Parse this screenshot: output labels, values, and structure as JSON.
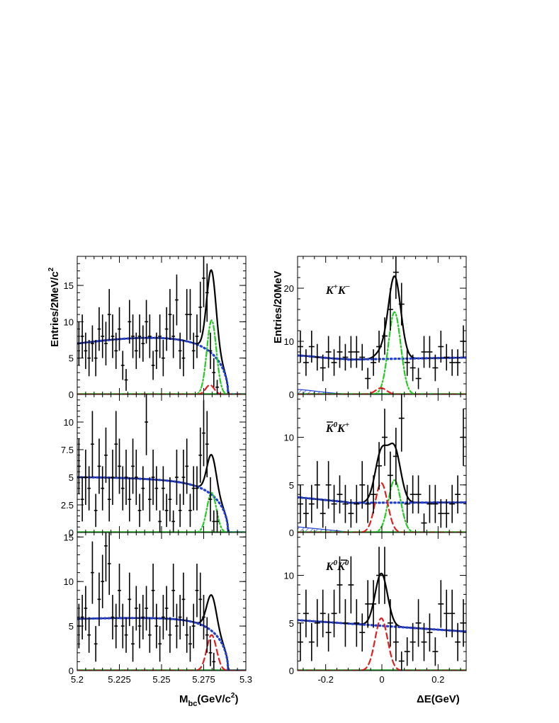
{
  "figure": {
    "left_ylabel": "Entries/2MeV/c",
    "left_ylabel_sup": "2",
    "right_ylabel": "Entries/20MeV",
    "left_xlabel_main": "M",
    "left_xlabel_sub": "bc",
    "left_xlabel_rest": "(GeV/c",
    "left_xlabel_sup": "2",
    "left_xlabel_close": ")",
    "right_xlabel": "ΔE(GeV)",
    "left_xticks": [
      "5.2",
      "5.225",
      "5.25",
      "5.275",
      "5.3"
    ],
    "right_xticks": [
      "-0.2",
      "0",
      "0.2"
    ]
  },
  "chart_data": [
    {
      "type": "scatter",
      "panel": "Mbc K+K-",
      "xlim": [
        5.2,
        5.3
      ],
      "ylim": [
        0,
        19
      ],
      "yticks": [
        "0",
        "5",
        "10",
        "15"
      ],
      "xerr": 0.001,
      "points": [
        [
          5.201,
          7,
          3
        ],
        [
          5.203,
          8,
          3
        ],
        [
          5.205,
          6,
          2.5
        ],
        [
          5.207,
          5,
          2.5
        ],
        [
          5.209,
          7,
          2.5
        ],
        [
          5.211,
          5,
          2.5
        ],
        [
          5.213,
          9,
          3
        ],
        [
          5.215,
          8,
          3
        ],
        [
          5.217,
          7,
          3
        ],
        [
          5.219,
          11,
          3.5
        ],
        [
          5.221,
          8,
          3
        ],
        [
          5.223,
          6,
          2.5
        ],
        [
          5.225,
          9,
          3
        ],
        [
          5.227,
          4,
          2
        ],
        [
          5.229,
          2,
          1.5
        ],
        [
          5.231,
          10,
          3
        ],
        [
          5.233,
          8,
          3
        ],
        [
          5.235,
          6,
          2.5
        ],
        [
          5.237,
          8,
          3
        ],
        [
          5.239,
          7,
          2.5
        ],
        [
          5.241,
          10,
          3
        ],
        [
          5.243,
          8,
          3
        ],
        [
          5.245,
          4,
          2
        ],
        [
          5.247,
          6,
          2.5
        ],
        [
          5.249,
          8,
          3
        ],
        [
          5.251,
          5,
          2.5
        ],
        [
          5.253,
          9,
          3
        ],
        [
          5.255,
          11,
          3.5
        ],
        [
          5.257,
          8,
          3
        ],
        [
          5.259,
          13,
          3.5
        ],
        [
          5.261,
          6,
          2.5
        ],
        [
          5.263,
          5,
          2.5
        ],
        [
          5.265,
          11,
          3.5
        ],
        [
          5.267,
          11,
          3.5
        ],
        [
          5.269,
          6,
          2.5
        ],
        [
          5.271,
          8,
          3
        ],
        [
          5.273,
          12,
          3.5
        ],
        [
          5.275,
          16,
          4
        ],
        [
          5.277,
          14,
          4
        ],
        [
          5.279,
          6,
          2.5
        ],
        [
          5.281,
          3,
          2
        ],
        [
          5.283,
          1,
          1
        ]
      ],
      "curves": [
        {
          "name": "total",
          "color": "#000000",
          "style": "solid"
        },
        {
          "name": "background",
          "color": "#1f3fd6",
          "style": "dotted"
        },
        {
          "name": "signal",
          "color": "#22cc22",
          "style": "dashdot"
        },
        {
          "name": "peaking",
          "color": "#e02020",
          "style": "dashed"
        }
      ]
    },
    {
      "type": "scatter",
      "panel": "Mbc K0bar K+",
      "xlim": [
        5.2,
        5.3
      ],
      "ylim": [
        0,
        12.5
      ],
      "yticks": [
        "0",
        "2.5",
        "5",
        "7.5",
        "10"
      ],
      "xerr": 0.001,
      "points": [
        [
          5.201,
          6,
          2.5
        ],
        [
          5.203,
          3,
          2
        ],
        [
          5.205,
          5,
          2.5
        ],
        [
          5.207,
          4,
          2
        ],
        [
          5.209,
          8,
          3
        ],
        [
          5.211,
          2,
          1.5
        ],
        [
          5.213,
          6,
          2.5
        ],
        [
          5.215,
          4,
          2
        ],
        [
          5.217,
          7,
          2.5
        ],
        [
          5.219,
          3,
          2
        ],
        [
          5.221,
          5,
          2.5
        ],
        [
          5.223,
          8,
          3
        ],
        [
          5.225,
          6,
          2.5
        ],
        [
          5.227,
          4,
          2
        ],
        [
          5.229,
          5,
          2.5
        ],
        [
          5.231,
          3,
          2
        ],
        [
          5.233,
          6,
          2.5
        ],
        [
          5.235,
          5,
          2.5
        ],
        [
          5.237,
          2,
          1.5
        ],
        [
          5.239,
          4,
          2
        ],
        [
          5.241,
          10,
          3
        ],
        [
          5.243,
          3,
          2
        ],
        [
          5.245,
          5,
          2.5
        ],
        [
          5.247,
          4,
          2
        ],
        [
          5.249,
          1,
          1
        ],
        [
          5.251,
          4,
          2
        ],
        [
          5.253,
          2,
          1.5
        ],
        [
          5.255,
          3,
          2
        ],
        [
          5.257,
          1,
          1
        ],
        [
          5.259,
          5,
          2.5
        ],
        [
          5.261,
          2,
          1.5
        ],
        [
          5.263,
          5,
          2.5
        ],
        [
          5.265,
          6,
          2.5
        ],
        [
          5.267,
          2,
          1.5
        ],
        [
          5.269,
          4,
          2
        ],
        [
          5.271,
          4,
          2
        ],
        [
          5.273,
          7,
          2.5
        ],
        [
          5.275,
          9,
          3
        ],
        [
          5.277,
          8,
          3
        ],
        [
          5.279,
          3,
          2
        ],
        [
          5.281,
          1,
          1
        ],
        [
          5.283,
          1,
          1
        ]
      ],
      "curves": [
        {
          "name": "total",
          "color": "#000000",
          "style": "solid"
        },
        {
          "name": "background",
          "color": "#1f3fd6",
          "style": "dotted"
        },
        {
          "name": "signal",
          "color": "#22cc22",
          "style": "dashdot"
        }
      ]
    },
    {
      "type": "scatter",
      "panel": "Mbc K0 K0bar",
      "xlim": [
        5.2,
        5.3
      ],
      "ylim": [
        0,
        15.5
      ],
      "yticks": [
        "0",
        "5",
        "10",
        "15"
      ],
      "xerr": 0.001,
      "points": [
        [
          5.201,
          5,
          2.5
        ],
        [
          5.203,
          6,
          2.5
        ],
        [
          5.205,
          7,
          2.5
        ],
        [
          5.207,
          4,
          2
        ],
        [
          5.209,
          11,
          3.5
        ],
        [
          5.211,
          3,
          2
        ],
        [
          5.213,
          8,
          3
        ],
        [
          5.215,
          10,
          3
        ],
        [
          5.217,
          14,
          4
        ],
        [
          5.219,
          12,
          3.5
        ],
        [
          5.221,
          6,
          2.5
        ],
        [
          5.223,
          5,
          2.5
        ],
        [
          5.225,
          9,
          3
        ],
        [
          5.227,
          5,
          2.5
        ],
        [
          5.229,
          4,
          2
        ],
        [
          5.231,
          8,
          3
        ],
        [
          5.233,
          3,
          2
        ],
        [
          5.235,
          7,
          2.5
        ],
        [
          5.237,
          5,
          2.5
        ],
        [
          5.239,
          6,
          2.5
        ],
        [
          5.241,
          7,
          2.5
        ],
        [
          5.243,
          4,
          2
        ],
        [
          5.245,
          9,
          3
        ],
        [
          5.247,
          5,
          2.5
        ],
        [
          5.249,
          3,
          2
        ],
        [
          5.251,
          6,
          2.5
        ],
        [
          5.253,
          7,
          2.5
        ],
        [
          5.255,
          4,
          2
        ],
        [
          5.257,
          9,
          3
        ],
        [
          5.259,
          5,
          2.5
        ],
        [
          5.261,
          6,
          2.5
        ],
        [
          5.263,
          8,
          3
        ],
        [
          5.265,
          4,
          2
        ],
        [
          5.267,
          3,
          2
        ],
        [
          5.269,
          5,
          2.5
        ],
        [
          5.271,
          9,
          3
        ],
        [
          5.273,
          8,
          3
        ],
        [
          5.275,
          6,
          2.5
        ],
        [
          5.277,
          4,
          2
        ],
        [
          5.279,
          2,
          1.5
        ],
        [
          5.281,
          1,
          1
        ]
      ],
      "curves": [
        {
          "name": "total",
          "color": "#000000",
          "style": "solid"
        },
        {
          "name": "background",
          "color": "#1f3fd6",
          "style": "dotted"
        },
        {
          "name": "peaking",
          "color": "#e02020",
          "style": "dashed"
        }
      ]
    },
    {
      "type": "scatter",
      "panel": "dE K+K-",
      "label": "K+K−",
      "label_main": "K",
      "label_sup1": "+",
      "label_mid": "K",
      "label_sup2": "−",
      "xlim": [
        -0.3,
        0.3
      ],
      "ylim": [
        0,
        26
      ],
      "yticks": [
        "0",
        "10",
        "20"
      ],
      "xerr": 0.01,
      "points": [
        [
          -0.29,
          9,
          3
        ],
        [
          -0.27,
          6,
          2.5
        ],
        [
          -0.25,
          9,
          3
        ],
        [
          -0.23,
          7,
          2.5
        ],
        [
          -0.21,
          5,
          2.5
        ],
        [
          -0.19,
          8,
          3
        ],
        [
          -0.17,
          6,
          2.5
        ],
        [
          -0.15,
          8,
          3
        ],
        [
          -0.13,
          7,
          2.5
        ],
        [
          -0.11,
          8,
          3
        ],
        [
          -0.09,
          8,
          3
        ],
        [
          -0.07,
          7,
          2.5
        ],
        [
          -0.05,
          3,
          2
        ],
        [
          -0.03,
          6,
          2.5
        ],
        [
          -0.01,
          9,
          3
        ],
        [
          0.01,
          11,
          3.5
        ],
        [
          0.03,
          16,
          4
        ],
        [
          0.05,
          23,
          5
        ],
        [
          0.07,
          17,
          4
        ],
        [
          0.09,
          6,
          2.5
        ],
        [
          0.11,
          5,
          2.5
        ],
        [
          0.13,
          3,
          2
        ],
        [
          0.15,
          8,
          3
        ],
        [
          0.17,
          8,
          3
        ],
        [
          0.19,
          5,
          2.5
        ],
        [
          0.21,
          9,
          3
        ],
        [
          0.23,
          7,
          2.5
        ],
        [
          0.25,
          6,
          2.5
        ],
        [
          0.27,
          6,
          2.5
        ],
        [
          0.29,
          10,
          3
        ]
      ],
      "curves": [
        {
          "name": "total",
          "color": "#000000",
          "style": "solid"
        },
        {
          "name": "background",
          "color": "#1f3fd6",
          "style": "dotted"
        },
        {
          "name": "signal",
          "color": "#22cc22",
          "style": "dashdot"
        },
        {
          "name": "peaking",
          "color": "#e02020",
          "style": "dashed"
        },
        {
          "name": "feed-down",
          "color": "#1f3fd6",
          "style": "hatched"
        }
      ]
    },
    {
      "type": "scatter",
      "panel": "dE K0bar K+",
      "label_main": "K",
      "label_sup1": "0",
      "label_mid": "K",
      "label_sup2": "+",
      "xlim": [
        -0.3,
        0.3
      ],
      "ylim": [
        0,
        14.5
      ],
      "yticks": [
        "0",
        "5",
        "10"
      ],
      "xerr": 0.01,
      "points": [
        [
          -0.29,
          3,
          2
        ],
        [
          -0.27,
          2,
          1.5
        ],
        [
          -0.25,
          3,
          2
        ],
        [
          -0.23,
          5,
          2.5
        ],
        [
          -0.21,
          2,
          1.5
        ],
        [
          -0.19,
          5,
          2.5
        ],
        [
          -0.17,
          3,
          2
        ],
        [
          -0.15,
          4,
          2
        ],
        [
          -0.13,
          3,
          2
        ],
        [
          -0.11,
          2,
          1.5
        ],
        [
          -0.09,
          3,
          2
        ],
        [
          -0.07,
          5,
          2.5
        ],
        [
          -0.05,
          3,
          2
        ],
        [
          -0.03,
          4,
          2
        ],
        [
          -0.01,
          7,
          2.5
        ],
        [
          0.01,
          10,
          3
        ],
        [
          0.03,
          6,
          2.5
        ],
        [
          0.05,
          8,
          3
        ],
        [
          0.07,
          12,
          3.5
        ],
        [
          0.09,
          3,
          2
        ],
        [
          0.11,
          4,
          2
        ],
        [
          0.13,
          4,
          2
        ],
        [
          0.15,
          1,
          1
        ],
        [
          0.17,
          3,
          2
        ],
        [
          0.19,
          3,
          2
        ],
        [
          0.21,
          2,
          1.5
        ],
        [
          0.23,
          2,
          1.5
        ],
        [
          0.25,
          3,
          2
        ],
        [
          0.27,
          4,
          2
        ],
        [
          0.29,
          10,
          3
        ]
      ],
      "curves": [
        {
          "name": "total",
          "color": "#000000",
          "style": "solid"
        },
        {
          "name": "background",
          "color": "#1f3fd6",
          "style": "dotted"
        },
        {
          "name": "signal",
          "color": "#22cc22",
          "style": "dashdot"
        },
        {
          "name": "peaking",
          "color": "#e02020",
          "style": "dashed"
        },
        {
          "name": "feed-down",
          "color": "#1f3fd6",
          "style": "hatched"
        }
      ]
    },
    {
      "type": "scatter",
      "panel": "dE K0 K0bar",
      "label_main": "K",
      "label_sup1": "0",
      "label_mid": "K",
      "label_sup2": "0",
      "xlim": [
        -0.3,
        0.3
      ],
      "ylim": [
        0,
        14.5
      ],
      "yticks": [
        "0",
        "5",
        "10"
      ],
      "xerr": 0.01,
      "points": [
        [
          -0.29,
          3,
          2
        ],
        [
          -0.27,
          6,
          2.5
        ],
        [
          -0.25,
          3,
          2
        ],
        [
          -0.23,
          5,
          2.5
        ],
        [
          -0.21,
          6,
          2.5
        ],
        [
          -0.19,
          4,
          2
        ],
        [
          -0.17,
          6,
          2.5
        ],
        [
          -0.15,
          9,
          3
        ],
        [
          -0.13,
          5,
          2.5
        ],
        [
          -0.11,
          9,
          3
        ],
        [
          -0.09,
          5,
          2.5
        ],
        [
          -0.07,
          4,
          2
        ],
        [
          -0.05,
          7,
          2.5
        ],
        [
          -0.03,
          7,
          2.5
        ],
        [
          -0.01,
          10,
          3
        ],
        [
          0.01,
          10,
          3
        ],
        [
          0.03,
          5,
          2.5
        ],
        [
          0.05,
          3,
          2
        ],
        [
          0.07,
          1,
          1
        ],
        [
          0.09,
          2,
          1.5
        ],
        [
          0.11,
          3,
          2
        ],
        [
          0.13,
          5,
          2.5
        ],
        [
          0.15,
          3,
          2
        ],
        [
          0.17,
          4,
          2
        ],
        [
          0.19,
          2,
          1.5
        ],
        [
          0.21,
          7,
          2.5
        ],
        [
          0.23,
          6,
          2.5
        ],
        [
          0.25,
          6,
          2.5
        ],
        [
          0.27,
          3,
          2
        ],
        [
          0.29,
          5,
          2.5
        ]
      ],
      "curves": [
        {
          "name": "total",
          "color": "#000000",
          "style": "solid"
        },
        {
          "name": "background",
          "color": "#1f3fd6",
          "style": "dotted"
        },
        {
          "name": "peaking",
          "color": "#e02020",
          "style": "dashed"
        }
      ]
    }
  ]
}
